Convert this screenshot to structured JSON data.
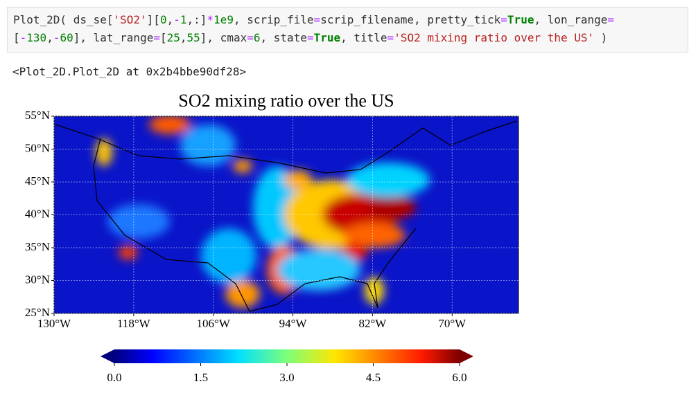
{
  "code": {
    "lines": [
      [
        {
          "text": "Plot_2D( ds_se[",
          "style": "plain"
        },
        {
          "text": "'SO2'",
          "style": "str"
        },
        {
          "text": "][",
          "style": "plain"
        },
        {
          "text": "0",
          "style": "num"
        },
        {
          "text": ",",
          "style": "plain"
        },
        {
          "text": "-",
          "style": "op"
        },
        {
          "text": "1",
          "style": "num"
        },
        {
          "text": ",:]",
          "style": "plain"
        },
        {
          "text": "*",
          "style": "op"
        },
        {
          "text": "1e9",
          "style": "num"
        },
        {
          "text": ", scrip_file",
          "style": "plain"
        },
        {
          "text": "=",
          "style": "op"
        },
        {
          "text": "scrip_filename, pretty_tick",
          "style": "plain"
        },
        {
          "text": "=",
          "style": "op"
        },
        {
          "text": "True",
          "style": "kw"
        },
        {
          "text": ", lon_range",
          "style": "plain"
        },
        {
          "text": "=",
          "style": "op"
        }
      ],
      [
        {
          "text": "[",
          "style": "plain"
        },
        {
          "text": "-",
          "style": "op"
        },
        {
          "text": "130",
          "style": "num"
        },
        {
          "text": ",",
          "style": "plain"
        },
        {
          "text": "-",
          "style": "op"
        },
        {
          "text": "60",
          "style": "num"
        },
        {
          "text": "], lat_range",
          "style": "plain"
        },
        {
          "text": "=",
          "style": "op"
        },
        {
          "text": "[",
          "style": "plain"
        },
        {
          "text": "25",
          "style": "num"
        },
        {
          "text": ",",
          "style": "plain"
        },
        {
          "text": "55",
          "style": "num"
        },
        {
          "text": "], cmax",
          "style": "plain"
        },
        {
          "text": "=",
          "style": "op"
        },
        {
          "text": "6",
          "style": "num"
        },
        {
          "text": ", state",
          "style": "plain"
        },
        {
          "text": "=",
          "style": "op"
        },
        {
          "text": "True",
          "style": "kw"
        },
        {
          "text": ", title",
          "style": "plain"
        },
        {
          "text": "=",
          "style": "op"
        },
        {
          "text": "'SO2 mixing ratio over the US'",
          "style": "str"
        },
        {
          "text": " )",
          "style": "plain"
        }
      ]
    ]
  },
  "output": "<Plot_2D.Plot_2D at 0x2b4bbe90df28>",
  "chart_data": {
    "type": "map",
    "title": "SO2 mixing ratio over the US",
    "xlim": [
      -130,
      -60
    ],
    "ylim": [
      25,
      55
    ],
    "xticks": [
      {
        "value": -130,
        "label": "130°W"
      },
      {
        "value": -118,
        "label": "118°W"
      },
      {
        "value": -106,
        "label": "106°W"
      },
      {
        "value": -94,
        "label": "94°W"
      },
      {
        "value": -82,
        "label": "82°W"
      },
      {
        "value": -70,
        "label": "70°W"
      }
    ],
    "yticks": [
      {
        "value": 25,
        "label": "25°N"
      },
      {
        "value": 30,
        "label": "30°N"
      },
      {
        "value": 35,
        "label": "35°N"
      },
      {
        "value": 40,
        "label": "40°N"
      },
      {
        "value": 45,
        "label": "45°N"
      },
      {
        "value": 50,
        "label": "50°N"
      },
      {
        "value": 55,
        "label": "55°N"
      }
    ],
    "colorbar": {
      "lim": [
        0,
        6
      ],
      "ticks": [
        {
          "value": 0,
          "label": "0.0"
        },
        1.5,
        {
          "value": 3,
          "label": "3.0"
        },
        4.5,
        {
          "value": 6,
          "label": "6.0"
        }
      ],
      "colormap": "jet"
    }
  }
}
